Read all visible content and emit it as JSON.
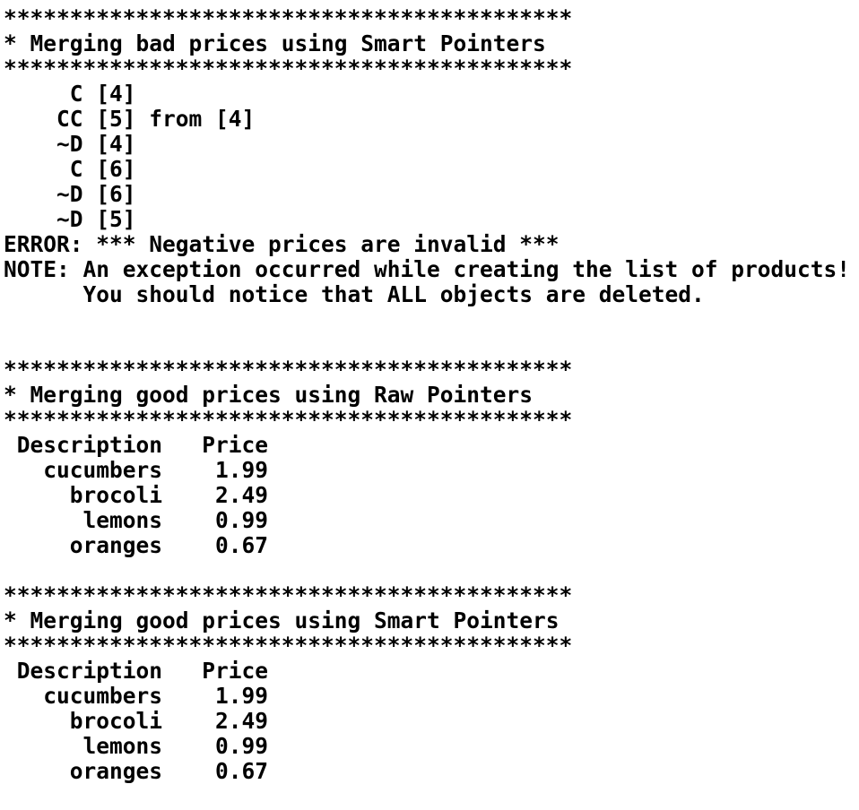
{
  "terminal": {
    "lines": [
      "*******************************************",
      "* Merging bad prices using Smart Pointers",
      "*******************************************",
      "     C [4]",
      "    CC [5] from [4]",
      "    ~D [4]",
      "     C [6]",
      "    ~D [6]",
      "    ~D [5]",
      "ERROR: *** Negative prices are invalid ***",
      "NOTE: An exception occurred while creating the list of products!",
      "      You should notice that ALL objects are deleted.",
      "",
      "",
      "*******************************************",
      "* Merging good prices using Raw Pointers",
      "*******************************************",
      " Description   Price",
      "   cucumbers    1.99",
      "     brocoli    2.49",
      "      lemons    0.99",
      "     oranges    0.67",
      "",
      "*******************************************",
      "* Merging good prices using Smart Pointers",
      "*******************************************",
      " Description   Price",
      "   cucumbers    1.99",
      "     brocoli    2.49",
      "      lemons    0.99",
      "     oranges    0.67"
    ]
  }
}
